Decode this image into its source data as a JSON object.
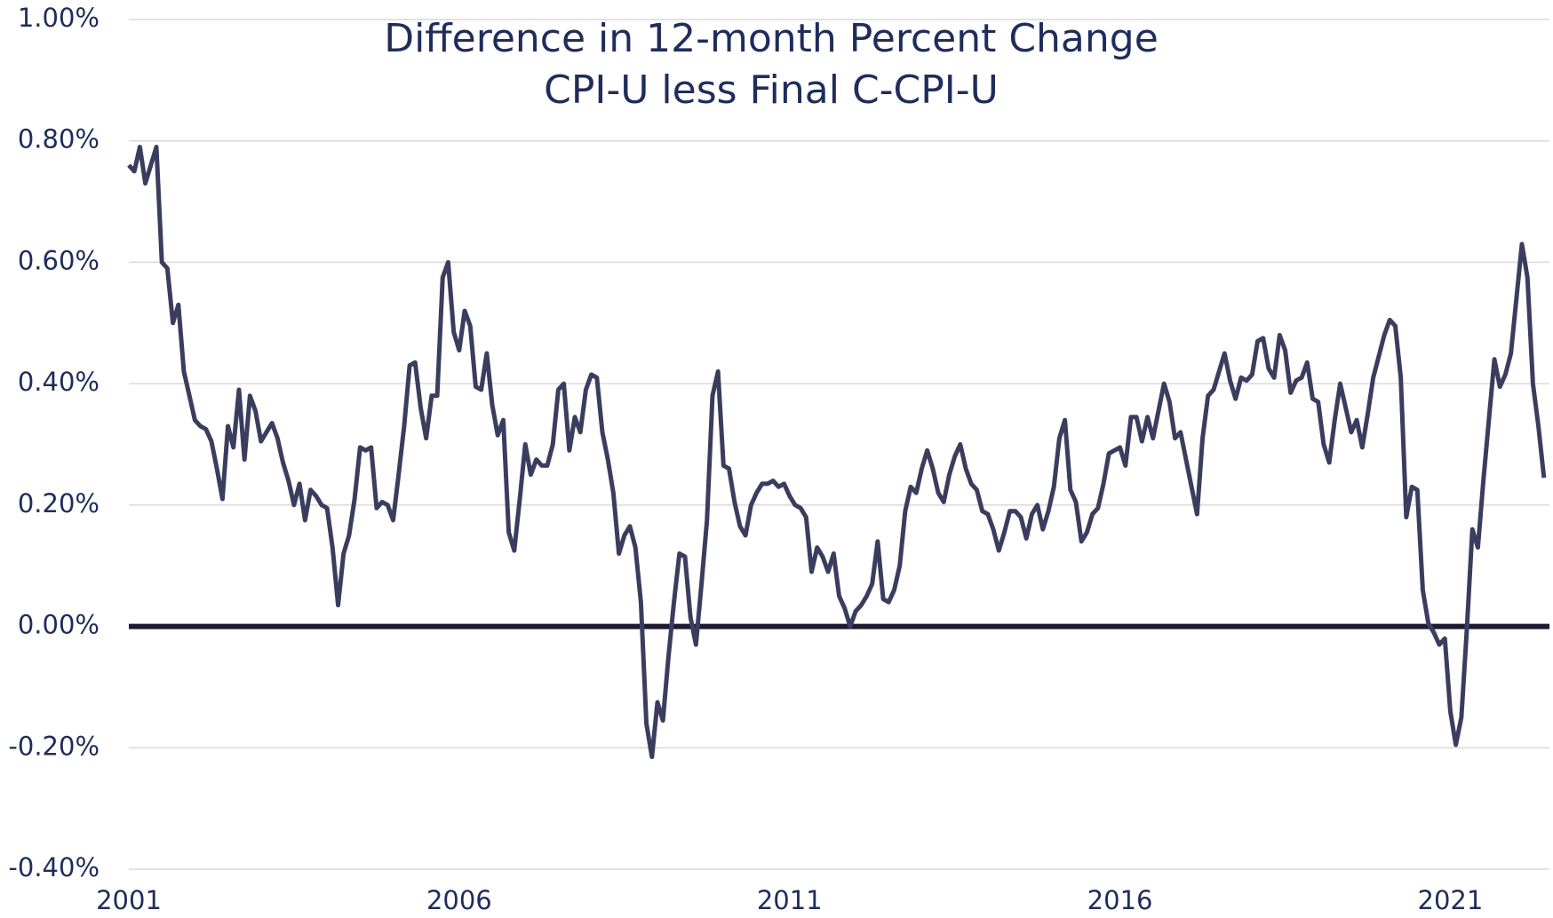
{
  "chart_data": {
    "type": "line",
    "title": "Difference in 12-month Percent Change",
    "subtitle": "CPI-U less Final C-CPI-U",
    "color": "#3a3d5e",
    "zero_color": "#1c1c30",
    "grid": true,
    "xlim": [
      2001,
      2022.5
    ],
    "xticks": [
      2001,
      2006,
      2011,
      2016,
      2021
    ],
    "ylim": [
      -0.4,
      1.0
    ],
    "yticks": [
      {
        "value": -0.4,
        "label": "-0.40%"
      },
      {
        "value": -0.2,
        "label": "-0.20%"
      },
      {
        "value": 0,
        "label": "0.00%"
      },
      {
        "value": 0.2,
        "label": "0.20%"
      },
      {
        "value": 0.4,
        "label": "0.40%"
      },
      {
        "value": 0.6,
        "label": "0.60%"
      },
      {
        "value": 0.8,
        "label": "0.80%"
      },
      {
        "value": 1.0,
        "label": "1.00%"
      }
    ],
    "x": [
      2001,
      2001.083,
      2001.167,
      2001.25,
      2001.333,
      2001.417,
      2001.5,
      2001.583,
      2001.667,
      2001.75,
      2001.833,
      2001.917,
      2002,
      2002.083,
      2002.167,
      2002.25,
      2002.333,
      2002.417,
      2002.5,
      2002.583,
      2002.667,
      2002.75,
      2002.833,
      2002.917,
      2003,
      2003.083,
      2003.167,
      2003.25,
      2003.333,
      2003.417,
      2003.5,
      2003.583,
      2003.667,
      2003.75,
      2003.833,
      2003.917,
      2004,
      2004.083,
      2004.167,
      2004.25,
      2004.333,
      2004.417,
      2004.5,
      2004.583,
      2004.667,
      2004.75,
      2004.833,
      2004.917,
      2005,
      2005.083,
      2005.167,
      2005.25,
      2005.333,
      2005.417,
      2005.5,
      2005.583,
      2005.667,
      2005.75,
      2005.833,
      2005.917,
      2006,
      2006.083,
      2006.167,
      2006.25,
      2006.333,
      2006.417,
      2006.5,
      2006.583,
      2006.667,
      2006.75,
      2006.833,
      2006.917,
      2007,
      2007.083,
      2007.167,
      2007.25,
      2007.333,
      2007.417,
      2007.5,
      2007.583,
      2007.667,
      2007.75,
      2007.833,
      2007.917,
      2008,
      2008.083,
      2008.167,
      2008.25,
      2008.333,
      2008.417,
      2008.5,
      2008.583,
      2008.667,
      2008.75,
      2008.833,
      2008.917,
      2009,
      2009.083,
      2009.167,
      2009.25,
      2009.333,
      2009.417,
      2009.5,
      2009.583,
      2009.667,
      2009.75,
      2009.833,
      2009.917,
      2010,
      2010.083,
      2010.167,
      2010.25,
      2010.333,
      2010.417,
      2010.5,
      2010.583,
      2010.667,
      2010.75,
      2010.833,
      2010.917,
      2011,
      2011.083,
      2011.167,
      2011.25,
      2011.333,
      2011.417,
      2011.5,
      2011.583,
      2011.667,
      2011.75,
      2011.833,
      2011.917,
      2012,
      2012.083,
      2012.167,
      2012.25,
      2012.333,
      2012.417,
      2012.5,
      2012.583,
      2012.667,
      2012.75,
      2012.833,
      2012.917,
      2013,
      2013.083,
      2013.167,
      2013.25,
      2013.333,
      2013.417,
      2013.5,
      2013.583,
      2013.667,
      2013.75,
      2013.833,
      2013.917,
      2014,
      2014.083,
      2014.167,
      2014.25,
      2014.333,
      2014.417,
      2014.5,
      2014.583,
      2014.667,
      2014.75,
      2014.833,
      2014.917,
      2015,
      2015.083,
      2015.167,
      2015.25,
      2015.333,
      2015.417,
      2015.5,
      2015.583,
      2015.667,
      2015.75,
      2015.833,
      2015.917,
      2016,
      2016.083,
      2016.167,
      2016.25,
      2016.333,
      2016.417,
      2016.5,
      2016.583,
      2016.667,
      2016.75,
      2016.833,
      2016.917,
      2017,
      2017.083,
      2017.167,
      2017.25,
      2017.333,
      2017.417,
      2017.5,
      2017.583,
      2017.667,
      2017.75,
      2017.833,
      2017.917,
      2018,
      2018.083,
      2018.167,
      2018.25,
      2018.333,
      2018.417,
      2018.5,
      2018.583,
      2018.667,
      2018.75,
      2018.833,
      2018.917,
      2019,
      2019.083,
      2019.167,
      2019.25,
      2019.333,
      2019.417,
      2019.5,
      2019.583,
      2019.667,
      2019.75,
      2019.833,
      2019.917,
      2020,
      2020.083,
      2020.167,
      2020.25,
      2020.333,
      2020.417,
      2020.5,
      2020.583,
      2020.667,
      2020.75,
      2020.833,
      2020.917,
      2021,
      2021.083,
      2021.167,
      2021.25,
      2021.333,
      2021.417,
      2021.5,
      2021.583,
      2021.667,
      2021.75,
      2021.833,
      2021.917,
      2022,
      2022.083,
      2022.167,
      2022.25,
      2022.333,
      2022.417
    ],
    "values": [
      0.76,
      0.75,
      0.79,
      0.73,
      0.76,
      0.79,
      0.6,
      0.59,
      0.5,
      0.53,
      0.42,
      0.38,
      0.34,
      0.33,
      0.325,
      0.305,
      0.26,
      0.21,
      0.33,
      0.295,
      0.39,
      0.275,
      0.38,
      0.355,
      0.305,
      0.32,
      0.335,
      0.31,
      0.27,
      0.24,
      0.2,
      0.235,
      0.175,
      0.225,
      0.215,
      0.2,
      0.195,
      0.13,
      0.035,
      0.12,
      0.15,
      0.21,
      0.295,
      0.29,
      0.295,
      0.195,
      0.205,
      0.2,
      0.175,
      0.25,
      0.33,
      0.43,
      0.435,
      0.36,
      0.31,
      0.38,
      0.38,
      0.575,
      0.6,
      0.485,
      0.455,
      0.52,
      0.495,
      0.395,
      0.39,
      0.45,
      0.365,
      0.315,
      0.34,
      0.155,
      0.125,
      0.21,
      0.3,
      0.25,
      0.275,
      0.265,
      0.265,
      0.3,
      0.39,
      0.4,
      0.29,
      0.345,
      0.32,
      0.39,
      0.415,
      0.41,
      0.32,
      0.275,
      0.22,
      0.12,
      0.15,
      0.165,
      0.13,
      0.04,
      -0.16,
      -0.215,
      -0.125,
      -0.155,
      -0.05,
      0.04,
      0.12,
      0.115,
      0.015,
      -0.03,
      0.07,
      0.175,
      0.38,
      0.42,
      0.265,
      0.26,
      0.205,
      0.165,
      0.15,
      0.2,
      0.22,
      0.235,
      0.235,
      0.24,
      0.23,
      0.235,
      0.215,
      0.2,
      0.195,
      0.18,
      0.09,
      0.13,
      0.115,
      0.09,
      0.12,
      0.05,
      0.03,
      0.0,
      0.025,
      0.035,
      0.05,
      0.07,
      0.14,
      0.045,
      0.04,
      0.06,
      0.1,
      0.19,
      0.23,
      0.22,
      0.26,
      0.29,
      0.26,
      0.22,
      0.205,
      0.25,
      0.28,
      0.3,
      0.26,
      0.235,
      0.225,
      0.19,
      0.185,
      0.16,
      0.125,
      0.155,
      0.19,
      0.19,
      0.18,
      0.145,
      0.185,
      0.2,
      0.16,
      0.19,
      0.23,
      0.31,
      0.34,
      0.225,
      0.205,
      0.14,
      0.155,
      0.185,
      0.195,
      0.235,
      0.285,
      0.29,
      0.295,
      0.265,
      0.345,
      0.345,
      0.305,
      0.345,
      0.31,
      0.355,
      0.4,
      0.37,
      0.31,
      0.32,
      0.275,
      0.23,
      0.185,
      0.31,
      0.38,
      0.39,
      0.42,
      0.45,
      0.405,
      0.375,
      0.41,
      0.405,
      0.415,
      0.47,
      0.475,
      0.425,
      0.41,
      0.48,
      0.455,
      0.385,
      0.405,
      0.41,
      0.435,
      0.375,
      0.37,
      0.3,
      0.27,
      0.34,
      0.4,
      0.36,
      0.32,
      0.34,
      0.295,
      0.35,
      0.41,
      0.445,
      0.48,
      0.505,
      0.495,
      0.41,
      0.18,
      0.23,
      0.225,
      0.06,
      0.005,
      -0.01,
      -0.03,
      -0.02,
      -0.14,
      -0.195,
      -0.15,
      -0.005,
      0.16,
      0.13,
      0.24,
      0.34,
      0.44,
      0.395,
      0.415,
      0.45,
      0.54,
      0.63,
      0.575,
      0.4,
      0.33,
      0.245
    ]
  }
}
